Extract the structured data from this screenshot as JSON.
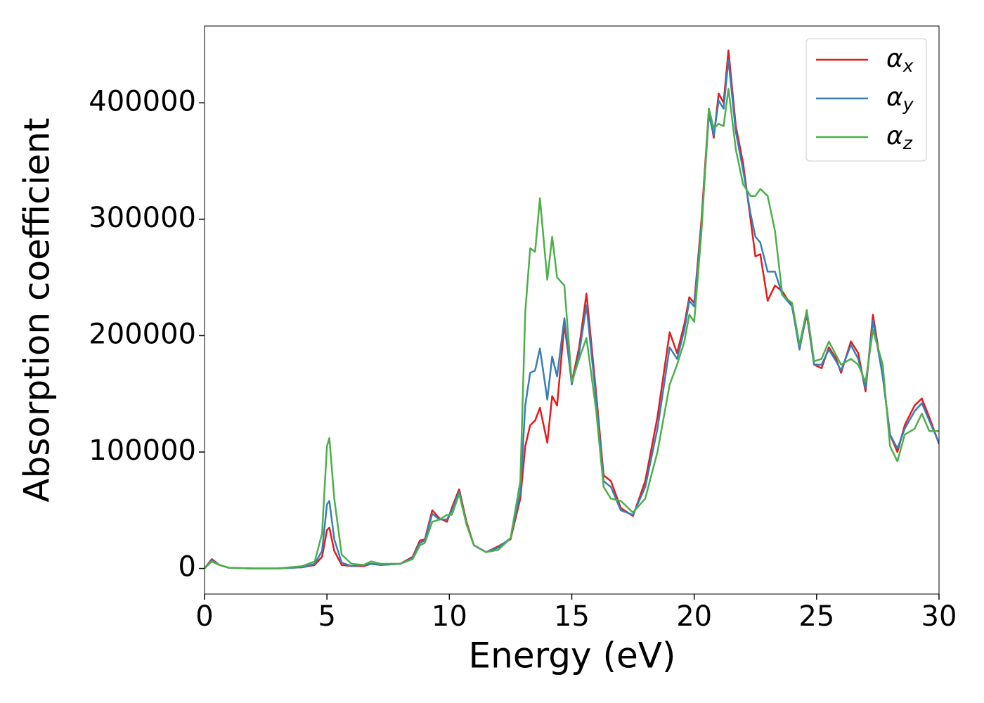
{
  "chart_data": {
    "type": "line",
    "xlabel": "Energy (eV)",
    "ylabel": "Absorption coefficient",
    "x": [
      0,
      0.3,
      0.6,
      1,
      2,
      3,
      4,
      4.5,
      4.8,
      5.0,
      5.1,
      5.3,
      5.6,
      6,
      6.5,
      6.8,
      7.2,
      8,
      8.5,
      8.8,
      9.0,
      9.3,
      9.6,
      9.9,
      10.1,
      10.4,
      10.7,
      11,
      11.5,
      12,
      12.5,
      12.9,
      13.1,
      13.3,
      13.5,
      13.7,
      14.0,
      14.2,
      14.4,
      14.7,
      15.0,
      15.3,
      15.6,
      16.0,
      16.3,
      16.6,
      17.0,
      17.5,
      18.0,
      18.5,
      19.0,
      19.3,
      19.6,
      19.8,
      20.0,
      20.3,
      20.6,
      20.8,
      21.0,
      21.2,
      21.4,
      21.7,
      22.0,
      22.3,
      22.5,
      22.7,
      23.0,
      23.3,
      23.6,
      24.0,
      24.3,
      24.6,
      24.9,
      25.2,
      25.5,
      25.8,
      26.0,
      26.4,
      26.7,
      27.0,
      27.3,
      27.7,
      28.0,
      28.3,
      28.6,
      29.0,
      29.3,
      29.6,
      30
    ],
    "series": [
      {
        "name": "αx",
        "color": "#e41a1c",
        "values": [
          0,
          8000,
          3000,
          500,
          0,
          0,
          1000,
          3000,
          10000,
          33000,
          35000,
          15000,
          3000,
          2000,
          2000,
          4000,
          3000,
          4000,
          10000,
          24000,
          25000,
          50000,
          43000,
          40000,
          52000,
          68000,
          40000,
          20000,
          14000,
          19000,
          25000,
          60000,
          105000,
          123000,
          127000,
          138000,
          108000,
          148000,
          140000,
          210000,
          160000,
          190000,
          236000,
          150000,
          80000,
          75000,
          52000,
          45000,
          75000,
          130000,
          203000,
          185000,
          210000,
          233000,
          228000,
          300000,
          395000,
          370000,
          408000,
          400000,
          445000,
          380000,
          348000,
          300000,
          268000,
          270000,
          230000,
          243000,
          238000,
          225000,
          190000,
          218000,
          175000,
          172000,
          190000,
          180000,
          168000,
          195000,
          185000,
          152000,
          218000,
          165000,
          115000,
          100000,
          123000,
          140000,
          146000,
          130000,
          107000
        ]
      },
      {
        "name": "αy",
        "color": "#377eb8",
        "values": [
          0,
          7000,
          3000,
          500,
          0,
          0,
          1000,
          4000,
          15000,
          55000,
          58000,
          25000,
          5000,
          2000,
          3000,
          4000,
          3000,
          4000,
          9000,
          22000,
          24000,
          47000,
          42000,
          42000,
          50000,
          66000,
          38000,
          20000,
          14000,
          18000,
          26000,
          65000,
          140000,
          168000,
          170000,
          189000,
          145000,
          182000,
          165000,
          215000,
          158000,
          185000,
          226000,
          145000,
          75000,
          70000,
          50000,
          46000,
          70000,
          120000,
          190000,
          180000,
          205000,
          230000,
          225000,
          295000,
          390000,
          372000,
          402000,
          395000,
          437000,
          375000,
          342000,
          305000,
          285000,
          280000,
          255000,
          255000,
          235000,
          225000,
          188000,
          220000,
          175000,
          175000,
          188000,
          178000,
          170000,
          192000,
          180000,
          155000,
          213000,
          165000,
          115000,
          103000,
          120000,
          135000,
          142000,
          127000,
          108000
        ]
      },
      {
        "name": "αz",
        "color": "#4daf4a",
        "values": [
          0,
          6000,
          3000,
          500,
          0,
          0,
          2000,
          6000,
          30000,
          105000,
          112000,
          60000,
          12000,
          4000,
          3000,
          6000,
          4000,
          4000,
          8000,
          20000,
          22000,
          40000,
          42000,
          46000,
          46000,
          64000,
          38000,
          20000,
          14000,
          16000,
          26000,
          75000,
          220000,
          275000,
          272000,
          318000,
          248000,
          285000,
          250000,
          243000,
          160000,
          180000,
          198000,
          135000,
          70000,
          60000,
          58000,
          48000,
          60000,
          100000,
          158000,
          175000,
          195000,
          218000,
          212000,
          290000,
          395000,
          378000,
          382000,
          380000,
          412000,
          360000,
          330000,
          320000,
          320000,
          326000,
          320000,
          290000,
          235000,
          228000,
          192000,
          222000,
          178000,
          180000,
          195000,
          183000,
          175000,
          180000,
          175000,
          160000,
          205000,
          175000,
          105000,
          92000,
          115000,
          120000,
          133000,
          118000,
          118000
        ]
      }
    ],
    "xlim": [
      0,
      30
    ],
    "xticks": [
      0,
      5,
      10,
      15,
      20,
      25,
      30
    ],
    "ylim": [
      -22000,
      466000
    ],
    "yticks": [
      0,
      100000,
      200000,
      300000,
      400000
    ],
    "grid": false,
    "legend": "upper right"
  }
}
